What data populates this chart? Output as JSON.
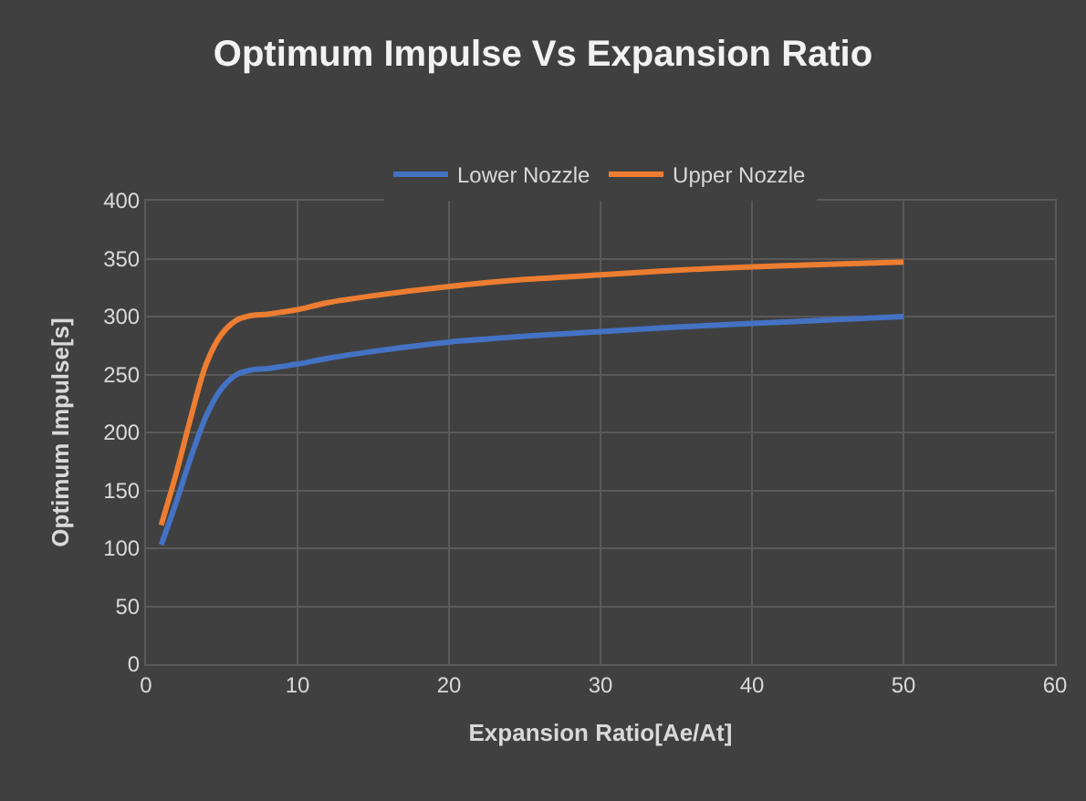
{
  "chart_data": {
    "type": "line",
    "title": "Optimum Impulse Vs Expansion Ratio",
    "xlabel": "Expansion Ratio[Ae/At]",
    "ylabel": "Optimum Impulse[s]",
    "x": [
      1,
      2,
      3,
      4,
      5,
      6,
      7,
      8,
      9,
      10,
      12,
      15,
      20,
      25,
      30,
      35,
      40,
      45,
      50
    ],
    "series": [
      {
        "name": "Lower Nozzle",
        "color": "#4472c4",
        "values": [
          103,
          140,
          180,
          215,
          238,
          250,
          254,
          255,
          257,
          259,
          264,
          270,
          278,
          283,
          287,
          291,
          294,
          297,
          300
        ]
      },
      {
        "name": "Upper Nozzle",
        "color": "#ed7d31",
        "values": [
          120,
          165,
          215,
          260,
          285,
          297,
          301,
          302,
          304,
          306,
          312,
          318,
          326,
          332,
          336,
          340,
          343,
          345,
          347
        ]
      }
    ],
    "xlim": [
      0,
      60
    ],
    "xticks": [
      0,
      10,
      20,
      30,
      40,
      50,
      60
    ],
    "ylim": [
      0,
      400
    ],
    "yticks": [
      0,
      50,
      100,
      150,
      200,
      250,
      300,
      350,
      400
    ],
    "grid": true,
    "legend": "top",
    "marker": "none",
    "line_style": "solid"
  }
}
